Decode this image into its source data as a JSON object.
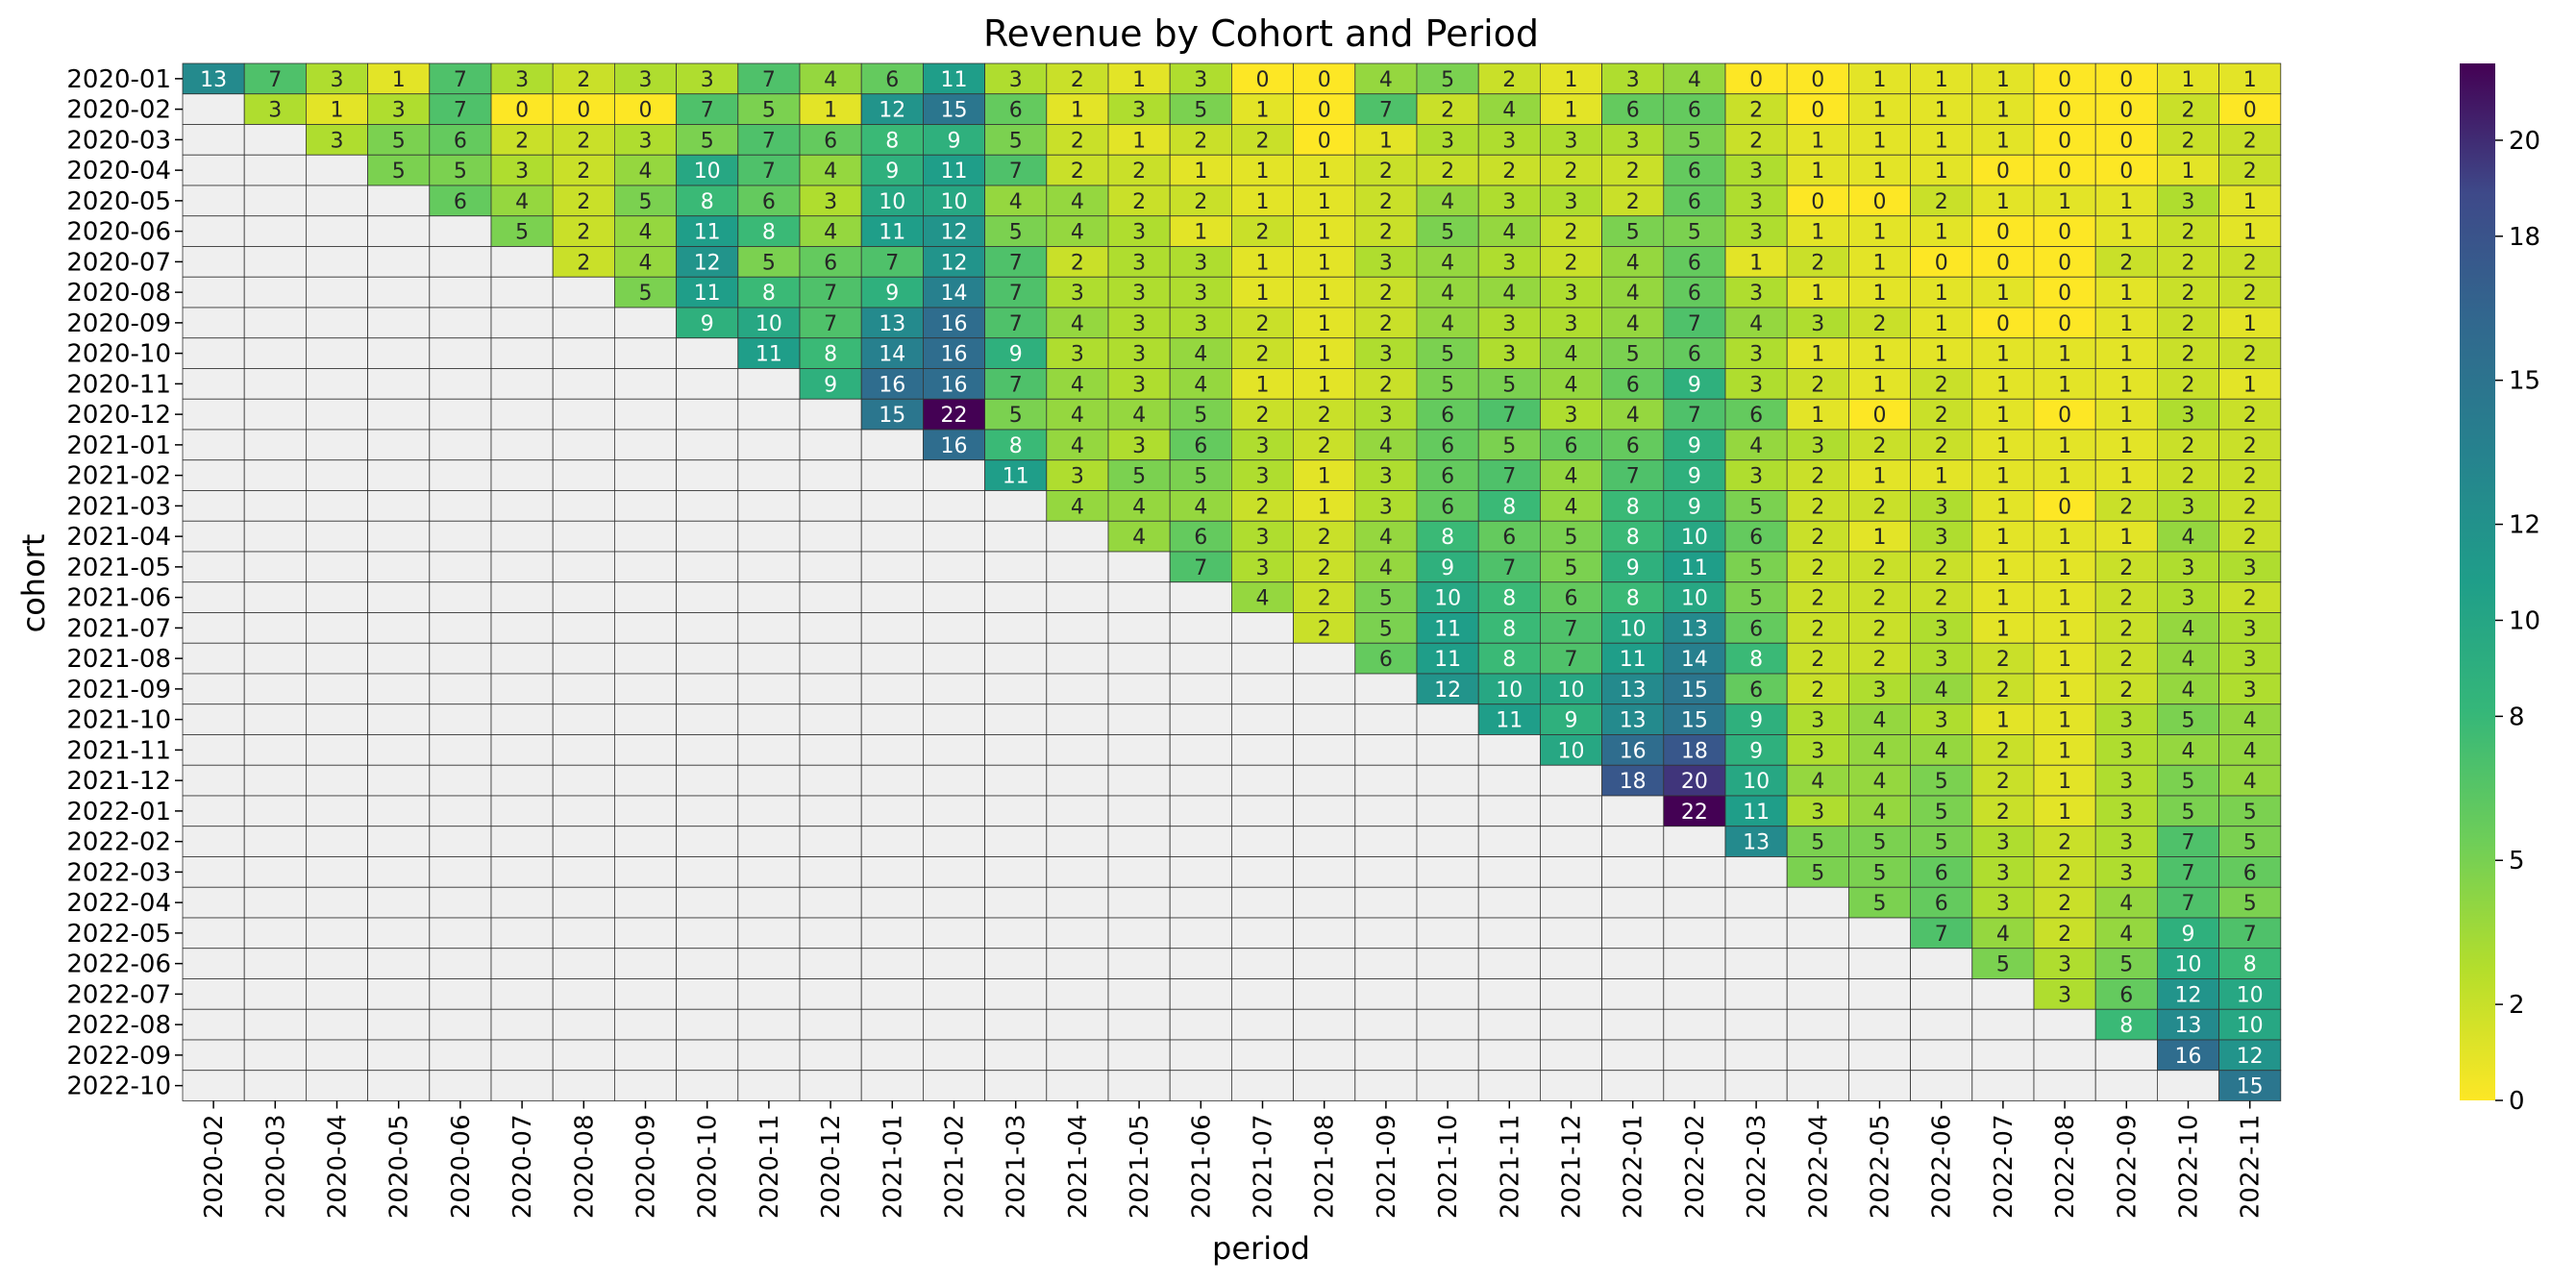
{
  "chart_data": {
    "type": "heatmap",
    "title": "Revenue by Cohort and Period",
    "xlabel": "period",
    "ylabel": "cohort",
    "x": [
      "2020-02",
      "2020-03",
      "2020-04",
      "2020-05",
      "2020-06",
      "2020-07",
      "2020-08",
      "2020-09",
      "2020-10",
      "2020-11",
      "2020-12",
      "2021-01",
      "2021-02",
      "2021-03",
      "2021-04",
      "2021-05",
      "2021-06",
      "2021-07",
      "2021-08",
      "2021-09",
      "2021-10",
      "2021-11",
      "2021-12",
      "2022-01",
      "2022-02",
      "2022-03",
      "2022-04",
      "2022-05",
      "2022-06",
      "2022-07",
      "2022-08",
      "2022-09",
      "2022-10",
      "2022-11"
    ],
    "y": [
      "2020-01",
      "2020-02",
      "2020-03",
      "2020-04",
      "2020-05",
      "2020-06",
      "2020-07",
      "2020-08",
      "2020-09",
      "2020-10",
      "2020-11",
      "2020-12",
      "2021-01",
      "2021-02",
      "2021-03",
      "2021-04",
      "2021-05",
      "2021-06",
      "2021-07",
      "2021-08",
      "2021-09",
      "2021-10",
      "2021-11",
      "2021-12",
      "2022-01",
      "2022-02",
      "2022-03",
      "2022-04",
      "2022-05",
      "2022-06",
      "2022-07",
      "2022-08",
      "2022-09",
      "2022-10"
    ],
    "values": [
      [
        13,
        7,
        3,
        1,
        7,
        3,
        2,
        3,
        3,
        7,
        4,
        6,
        11,
        3,
        2,
        1,
        3,
        0,
        0,
        4,
        5,
        2,
        1,
        3,
        4,
        0,
        0,
        1,
        1,
        1,
        0,
        0,
        1,
        1
      ],
      [
        null,
        3,
        1,
        3,
        7,
        0,
        0,
        0,
        7,
        5,
        1,
        12,
        15,
        6,
        1,
        3,
        5,
        1,
        0,
        7,
        2,
        4,
        1,
        6,
        6,
        2,
        0,
        1,
        1,
        1,
        0,
        0,
        2,
        0
      ],
      [
        null,
        null,
        3,
        5,
        6,
        2,
        2,
        3,
        5,
        7,
        6,
        8,
        9,
        5,
        2,
        1,
        2,
        2,
        0,
        1,
        3,
        3,
        3,
        3,
        5,
        2,
        1,
        1,
        1,
        1,
        0,
        0,
        2,
        2
      ],
      [
        null,
        null,
        null,
        5,
        5,
        3,
        2,
        4,
        10,
        7,
        4,
        9,
        11,
        7,
        2,
        2,
        1,
        1,
        1,
        2,
        2,
        2,
        2,
        2,
        6,
        3,
        1,
        1,
        1,
        0,
        0,
        0,
        1,
        2
      ],
      [
        null,
        null,
        null,
        null,
        6,
        4,
        2,
        5,
        8,
        6,
        3,
        10,
        10,
        4,
        4,
        2,
        2,
        1,
        1,
        2,
        4,
        3,
        3,
        2,
        6,
        3,
        0,
        0,
        2,
        1,
        1,
        1,
        3,
        1
      ],
      [
        null,
        null,
        null,
        null,
        null,
        5,
        2,
        4,
        11,
        8,
        4,
        11,
        12,
        5,
        4,
        3,
        1,
        2,
        1,
        2,
        5,
        4,
        2,
        5,
        5,
        3,
        1,
        1,
        1,
        0,
        0,
        1,
        2,
        1
      ],
      [
        null,
        null,
        null,
        null,
        null,
        null,
        2,
        4,
        12,
        5,
        6,
        7,
        12,
        7,
        2,
        3,
        3,
        1,
        1,
        3,
        4,
        3,
        2,
        4,
        6,
        1,
        2,
        1,
        0,
        0,
        0,
        2,
        2,
        2
      ],
      [
        null,
        null,
        null,
        null,
        null,
        null,
        null,
        5,
        11,
        8,
        7,
        9,
        14,
        7,
        3,
        3,
        3,
        1,
        1,
        2,
        4,
        4,
        3,
        4,
        6,
        3,
        1,
        1,
        1,
        1,
        0,
        1,
        2,
        2
      ],
      [
        null,
        null,
        null,
        null,
        null,
        null,
        null,
        null,
        9,
        10,
        7,
        13,
        16,
        7,
        4,
        3,
        3,
        2,
        1,
        2,
        4,
        3,
        3,
        4,
        7,
        4,
        3,
        2,
        1,
        0,
        0,
        1,
        2,
        1
      ],
      [
        null,
        null,
        null,
        null,
        null,
        null,
        null,
        null,
        null,
        11,
        8,
        14,
        16,
        9,
        3,
        3,
        4,
        2,
        1,
        3,
        5,
        3,
        4,
        5,
        6,
        3,
        1,
        1,
        1,
        1,
        1,
        1,
        2,
        2
      ],
      [
        null,
        null,
        null,
        null,
        null,
        null,
        null,
        null,
        null,
        null,
        9,
        16,
        16,
        7,
        4,
        3,
        4,
        1,
        1,
        2,
        5,
        5,
        4,
        6,
        9,
        3,
        2,
        1,
        2,
        1,
        1,
        1,
        2,
        1
      ],
      [
        null,
        null,
        null,
        null,
        null,
        null,
        null,
        null,
        null,
        null,
        null,
        15,
        22,
        5,
        4,
        4,
        5,
        2,
        2,
        3,
        6,
        7,
        3,
        4,
        7,
        6,
        1,
        0,
        2,
        1,
        0,
        1,
        3,
        2
      ],
      [
        null,
        null,
        null,
        null,
        null,
        null,
        null,
        null,
        null,
        null,
        null,
        null,
        16,
        8,
        4,
        3,
        6,
        3,
        2,
        4,
        6,
        5,
        6,
        6,
        9,
        4,
        3,
        2,
        2,
        1,
        1,
        1,
        2,
        2
      ],
      [
        null,
        null,
        null,
        null,
        null,
        null,
        null,
        null,
        null,
        null,
        null,
        null,
        null,
        11,
        3,
        5,
        5,
        3,
        1,
        3,
        6,
        7,
        4,
        7,
        9,
        3,
        2,
        1,
        1,
        1,
        1,
        1,
        2,
        2
      ],
      [
        null,
        null,
        null,
        null,
        null,
        null,
        null,
        null,
        null,
        null,
        null,
        null,
        null,
        null,
        4,
        4,
        4,
        2,
        1,
        3,
        6,
        8,
        4,
        8,
        9,
        5,
        2,
        2,
        3,
        1,
        0,
        2,
        3,
        2
      ],
      [
        null,
        null,
        null,
        null,
        null,
        null,
        null,
        null,
        null,
        null,
        null,
        null,
        null,
        null,
        null,
        4,
        6,
        3,
        2,
        4,
        8,
        6,
        5,
        8,
        10,
        6,
        2,
        1,
        3,
        1,
        1,
        1,
        4,
        2
      ],
      [
        null,
        null,
        null,
        null,
        null,
        null,
        null,
        null,
        null,
        null,
        null,
        null,
        null,
        null,
        null,
        null,
        7,
        3,
        2,
        4,
        9,
        7,
        5,
        9,
        11,
        5,
        2,
        2,
        2,
        1,
        1,
        2,
        3,
        3
      ],
      [
        null,
        null,
        null,
        null,
        null,
        null,
        null,
        null,
        null,
        null,
        null,
        null,
        null,
        null,
        null,
        null,
        null,
        4,
        2,
        5,
        10,
        8,
        6,
        8,
        10,
        5,
        2,
        2,
        2,
        1,
        1,
        2,
        3,
        2
      ],
      [
        null,
        null,
        null,
        null,
        null,
        null,
        null,
        null,
        null,
        null,
        null,
        null,
        null,
        null,
        null,
        null,
        null,
        null,
        2,
        5,
        11,
        8,
        7,
        10,
        13,
        6,
        2,
        2,
        3,
        1,
        1,
        2,
        4,
        3
      ],
      [
        null,
        null,
        null,
        null,
        null,
        null,
        null,
        null,
        null,
        null,
        null,
        null,
        null,
        null,
        null,
        null,
        null,
        null,
        null,
        6,
        11,
        8,
        7,
        11,
        14,
        8,
        2,
        2,
        3,
        2,
        1,
        2,
        4,
        3
      ],
      [
        null,
        null,
        null,
        null,
        null,
        null,
        null,
        null,
        null,
        null,
        null,
        null,
        null,
        null,
        null,
        null,
        null,
        null,
        null,
        null,
        12,
        10,
        10,
        13,
        15,
        6,
        2,
        3,
        4,
        2,
        1,
        2,
        4,
        3
      ],
      [
        null,
        null,
        null,
        null,
        null,
        null,
        null,
        null,
        null,
        null,
        null,
        null,
        null,
        null,
        null,
        null,
        null,
        null,
        null,
        null,
        null,
        11,
        9,
        13,
        15,
        9,
        3,
        4,
        3,
        1,
        1,
        3,
        5,
        4
      ],
      [
        null,
        null,
        null,
        null,
        null,
        null,
        null,
        null,
        null,
        null,
        null,
        null,
        null,
        null,
        null,
        null,
        null,
        null,
        null,
        null,
        null,
        null,
        10,
        16,
        18,
        9,
        3,
        4,
        4,
        2,
        1,
        3,
        4,
        4
      ],
      [
        null,
        null,
        null,
        null,
        null,
        null,
        null,
        null,
        null,
        null,
        null,
        null,
        null,
        null,
        null,
        null,
        null,
        null,
        null,
        null,
        null,
        null,
        null,
        18,
        20,
        10,
        4,
        4,
        5,
        2,
        1,
        3,
        5,
        4
      ],
      [
        null,
        null,
        null,
        null,
        null,
        null,
        null,
        null,
        null,
        null,
        null,
        null,
        null,
        null,
        null,
        null,
        null,
        null,
        null,
        null,
        null,
        null,
        null,
        null,
        22,
        11,
        3,
        4,
        5,
        2,
        1,
        3,
        5,
        5
      ],
      [
        null,
        null,
        null,
        null,
        null,
        null,
        null,
        null,
        null,
        null,
        null,
        null,
        null,
        null,
        null,
        null,
        null,
        null,
        null,
        null,
        null,
        null,
        null,
        null,
        null,
        13,
        5,
        5,
        5,
        3,
        2,
        3,
        7,
        5
      ],
      [
        null,
        null,
        null,
        null,
        null,
        null,
        null,
        null,
        null,
        null,
        null,
        null,
        null,
        null,
        null,
        null,
        null,
        null,
        null,
        null,
        null,
        null,
        null,
        null,
        null,
        null,
        5,
        5,
        6,
        3,
        2,
        3,
        7,
        6
      ],
      [
        null,
        null,
        null,
        null,
        null,
        null,
        null,
        null,
        null,
        null,
        null,
        null,
        null,
        null,
        null,
        null,
        null,
        null,
        null,
        null,
        null,
        null,
        null,
        null,
        null,
        null,
        null,
        5,
        6,
        3,
        2,
        4,
        7,
        5
      ],
      [
        null,
        null,
        null,
        null,
        null,
        null,
        null,
        null,
        null,
        null,
        null,
        null,
        null,
        null,
        null,
        null,
        null,
        null,
        null,
        null,
        null,
        null,
        null,
        null,
        null,
        null,
        null,
        null,
        7,
        4,
        2,
        4,
        9,
        7
      ],
      [
        null,
        null,
        null,
        null,
        null,
        null,
        null,
        null,
        null,
        null,
        null,
        null,
        null,
        null,
        null,
        null,
        null,
        null,
        null,
        null,
        null,
        null,
        null,
        null,
        null,
        null,
        null,
        null,
        null,
        5,
        3,
        5,
        10,
        8
      ],
      [
        null,
        null,
        null,
        null,
        null,
        null,
        null,
        null,
        null,
        null,
        null,
        null,
        null,
        null,
        null,
        null,
        null,
        null,
        null,
        null,
        null,
        null,
        null,
        null,
        null,
        null,
        null,
        null,
        null,
        null,
        3,
        6,
        12,
        10
      ],
      [
        null,
        null,
        null,
        null,
        null,
        null,
        null,
        null,
        null,
        null,
        null,
        null,
        null,
        null,
        null,
        null,
        null,
        null,
        null,
        null,
        null,
        null,
        null,
        null,
        null,
        null,
        null,
        null,
        null,
        null,
        null,
        8,
        13,
        10
      ],
      [
        null,
        null,
        null,
        null,
        null,
        null,
        null,
        null,
        null,
        null,
        null,
        null,
        null,
        null,
        null,
        null,
        null,
        null,
        null,
        null,
        null,
        null,
        null,
        null,
        null,
        null,
        null,
        null,
        null,
        null,
        null,
        null,
        16,
        12
      ],
      [
        null,
        null,
        null,
        null,
        null,
        null,
        null,
        null,
        null,
        null,
        null,
        null,
        null,
        null,
        null,
        null,
        null,
        null,
        null,
        null,
        null,
        null,
        null,
        null,
        null,
        null,
        null,
        null,
        null,
        null,
        null,
        null,
        null,
        15
      ]
    ],
    "colorbar": {
      "colormap": "viridis_r",
      "min": 0,
      "max": 22,
      "ticks": [
        0,
        2,
        5,
        8,
        10,
        12,
        15,
        18,
        20
      ]
    },
    "empty_cell_color": "#efefef",
    "cell_border_color": "#333333",
    "legend": "colorbar-right"
  }
}
